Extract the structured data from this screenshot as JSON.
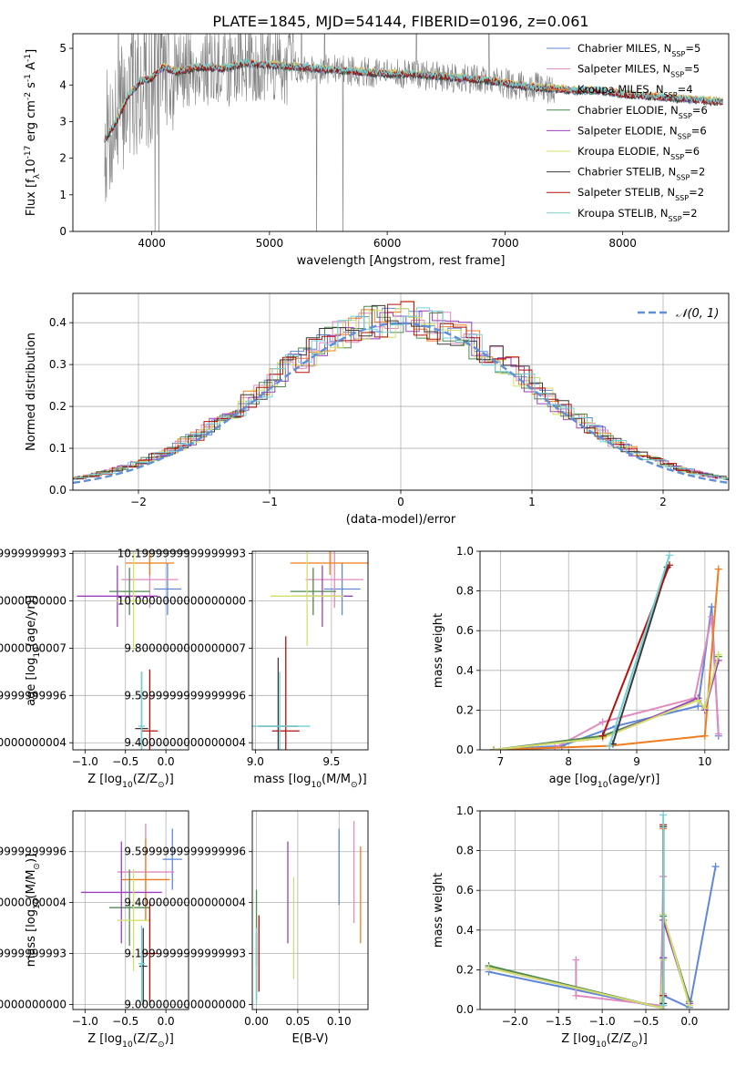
{
  "figure_title": "PLATE=1845, MJD=54144, FIBERID=0196, z=0.061",
  "series_names": [
    "Chabrier MILES, N$_{SSP}$=5",
    "Salpeter MILES, N$_{SSP}$=5",
    "Kroupa MILES, N$_{SSP}$=4",
    "Chabrier ELODIE, N$_{SSP}$=6",
    "Salpeter ELODIE, N$_{SSP}$=6",
    "Kroupa ELODIE, N$_{SSP}$=6",
    "Chabrier STELIB, N$_{SSP}$=2",
    "Salpeter STELIB, N$_{SSP}$=2",
    "Kroupa STELIB, N$_{SSP}$=2"
  ],
  "colors": {
    "series": [
      "#5f87d9",
      "#e08ac0",
      "#ef7d1f",
      "#4f8a4f",
      "#9a3fc0",
      "#d2e06a",
      "#3a3a3a",
      "#b5100a",
      "#72d2d8"
    ],
    "data_spectrum": "#808080",
    "normal_curve": "#5f8fd6",
    "grid": "#b0b0b0"
  },
  "chart_data": [
    {
      "id": "spectrum",
      "type": "line",
      "xlabel": "wavelength [Angstrom, rest frame]",
      "ylabel": "Flux [f$_\\lambda$10$^{-17}$ erg cm$^{-2}$ s$^{-1}$ A$^{-1}$]",
      "xlim": [
        3330,
        8900
      ],
      "ylim": [
        0,
        5.4
      ],
      "xticks": [
        4000,
        5000,
        6000,
        7000,
        8000
      ],
      "yticks": [
        0,
        1,
        2,
        3,
        4,
        5
      ],
      "grid": false,
      "legend": "right",
      "model_continuum": {
        "x": [
          3600,
          3700,
          3800,
          3900,
          4000,
          4100,
          4200,
          4400,
          4600,
          4800,
          5000,
          5200,
          5400,
          5600,
          5800,
          6000,
          6200,
          6400,
          6600,
          6800,
          7000,
          7200,
          7400,
          7600,
          7800,
          8000,
          8200,
          8400,
          8600,
          8800
        ],
        "y": [
          2.5,
          3.0,
          3.7,
          4.1,
          4.2,
          4.5,
          4.35,
          4.5,
          4.45,
          4.6,
          4.55,
          4.5,
          4.45,
          4.4,
          4.35,
          4.3,
          4.3,
          4.25,
          4.2,
          4.15,
          4.05,
          3.95,
          3.9,
          3.85,
          3.85,
          3.75,
          3.7,
          3.65,
          3.6,
          3.55
        ]
      },
      "data_noise_amplitude": 1.2
    },
    {
      "id": "residual_hist",
      "type": "line",
      "xlabel": "(data-model)/error",
      "ylabel": "Normed distribution",
      "xlim": [
        -2.5,
        2.5
      ],
      "ylim": [
        0,
        0.47
      ],
      "xticks": [
        -2,
        -1,
        0,
        1,
        2
      ],
      "yticks": [
        0.0,
        0.1,
        0.2,
        0.3,
        0.4
      ],
      "grid": true,
      "legend": "top-right",
      "legend_entry": "$\\mathcal{N}(0, 1)$"
    },
    {
      "id": "age_vs_Z",
      "type": "scatter",
      "xlabel": "Z [log$_{10}$(Z/Z$_\\odot$)]",
      "ylabel": "age  [log$_{10}$(age/yr)]",
      "xlim": [
        -1.15,
        0.28
      ],
      "ylim": [
        9.37,
        10.21
      ],
      "xticks": [
        -1.0,
        -0.5,
        0.0
      ],
      "yticks": [
        9.4,
        9.6,
        9.8,
        10.0,
        10.2
      ],
      "grid": true,
      "points": [
        {
          "s": 0,
          "x": 0.02,
          "y": 10.05,
          "xerr": 0.17,
          "yerr": 0.11
        },
        {
          "s": 1,
          "x": -0.2,
          "y": 10.09,
          "xerr": 0.35,
          "yerr": 0.12
        },
        {
          "s": 2,
          "x": -0.2,
          "y": 10.16,
          "xerr": 0.3,
          "yerr": 0.05
        },
        {
          "s": 3,
          "x": -0.45,
          "y": 10.04,
          "xerr": 0.25,
          "yerr": 0.1
        },
        {
          "s": 4,
          "x": -0.6,
          "y": 10.02,
          "xerr": 0.5,
          "yerr": 0.13
        },
        {
          "s": 5,
          "x": -0.4,
          "y": 10.0,
          "xerr": 0.22,
          "yerr": 0.21
        },
        {
          "s": 6,
          "x": -0.3,
          "y": 9.46,
          "xerr": 0.08,
          "yerr": 0.24
        },
        {
          "s": 7,
          "x": -0.2,
          "y": 9.45,
          "xerr": 0.1,
          "yerr": 0.26
        },
        {
          "s": 8,
          "x": -0.3,
          "y": 9.47,
          "xerr": 0.04,
          "yerr": 0.23
        }
      ]
    },
    {
      "id": "age_vs_mass",
      "type": "scatter",
      "xlabel": "mass [log$_{10}$(M/M$_\\odot$)]",
      "ylabel": "",
      "xlim": [
        8.98,
        9.74
      ],
      "ylim": [
        9.37,
        10.21
      ],
      "xticks": [
        9.0,
        9.5
      ],
      "yticks": [
        9.4,
        9.6,
        9.8,
        10.0,
        10.2
      ],
      "grid": true,
      "points": [
        {
          "s": 0,
          "x": 9.57,
          "y": 10.05,
          "xerr": 0.12,
          "yerr": 0.11
        },
        {
          "s": 1,
          "x": 9.52,
          "y": 10.09,
          "xerr": 0.19,
          "yerr": 0.12
        },
        {
          "s": 2,
          "x": 9.49,
          "y": 10.16,
          "xerr": 0.26,
          "yerr": 0.05
        },
        {
          "s": 3,
          "x": 9.38,
          "y": 10.04,
          "xerr": 0.15,
          "yerr": 0.1
        },
        {
          "s": 4,
          "x": 9.44,
          "y": 10.02,
          "xerr": 0.2,
          "yerr": 0.13
        },
        {
          "s": 5,
          "x": 9.34,
          "y": 10.02,
          "xerr": 0.24,
          "yerr": 0.21
        },
        {
          "s": 6,
          "x": 9.15,
          "y": 9.47,
          "xerr": 0.13,
          "yerr": 0.29
        },
        {
          "s": 7,
          "x": 9.2,
          "y": 9.45,
          "xerr": 0.09,
          "yerr": 0.4
        },
        {
          "s": 8,
          "x": 9.16,
          "y": 9.47,
          "xerr": 0.2,
          "yerr": 0.23
        }
      ]
    },
    {
      "id": "weight_vs_age",
      "type": "line",
      "xlabel": "age  [log$_{10}$(age/yr)]",
      "ylabel": "mass weight",
      "xlim": [
        6.7,
        10.35
      ],
      "ylim": [
        0,
        1.0
      ],
      "xticks": [
        7,
        8,
        9,
        10
      ],
      "yticks": [
        0.0,
        0.2,
        0.4,
        0.6,
        0.8,
        1.0
      ],
      "grid": true,
      "series": [
        {
          "s": 0,
          "x": [
            6.9,
            7.9,
            8.7,
            9.9,
            10.1,
            10.2
          ],
          "y": [
            0.0,
            0.02,
            0.12,
            0.22,
            0.72,
            0.07
          ]
        },
        {
          "s": 1,
          "x": [
            6.9,
            7.8,
            8.5,
            9.85,
            10.1,
            10.2
          ],
          "y": [
            0.0,
            0.01,
            0.14,
            0.26,
            0.67,
            0.08
          ]
        },
        {
          "s": 2,
          "x": [
            6.9,
            8.6,
            10.0,
            10.2
          ],
          "y": [
            0.0,
            0.02,
            0.07,
            0.91
          ]
        },
        {
          "s": 3,
          "x": [
            6.9,
            8.5,
            9.9,
            10.0,
            10.2
          ],
          "y": [
            0.0,
            0.07,
            0.25,
            0.21,
            0.47
          ]
        },
        {
          "s": 4,
          "x": [
            6.9,
            8.5,
            9.9,
            10.0,
            10.2
          ],
          "y": [
            0.0,
            0.06,
            0.26,
            0.2,
            0.45
          ]
        },
        {
          "s": 5,
          "x": [
            6.9,
            8.5,
            9.9,
            10.0,
            10.2
          ],
          "y": [
            0.0,
            0.06,
            0.25,
            0.21,
            0.48
          ]
        },
        {
          "s": 6,
          "x": [
            8.65,
            9.45
          ],
          "y": [
            0.03,
            0.92
          ]
        },
        {
          "s": 7,
          "x": [
            8.5,
            9.48
          ],
          "y": [
            0.07,
            0.93
          ]
        },
        {
          "s": 8,
          "x": [
            8.6,
            9.48
          ],
          "y": [
            0.02,
            0.98
          ]
        }
      ]
    },
    {
      "id": "mass_vs_Z",
      "type": "scatter",
      "xlabel": "Z [log$_{10}$(Z/Z$_\\odot$)]",
      "ylabel": "mass [log$_{10}$(M/M$_\\odot$)]",
      "xlim": [
        -1.15,
        0.28
      ],
      "ylim": [
        8.98,
        9.76
      ],
      "xticks": [
        -1.0,
        -0.5,
        0.0
      ],
      "yticks": [
        9.0,
        9.2,
        9.4,
        9.6
      ],
      "grid": true,
      "points": [
        {
          "s": 0,
          "x": 0.08,
          "y": 9.57,
          "xerr": 0.12,
          "yerr": 0.12
        },
        {
          "s": 1,
          "x": -0.25,
          "y": 9.52,
          "xerr": 0.35,
          "yerr": 0.19
        },
        {
          "s": 2,
          "x": -0.25,
          "y": 9.49,
          "xerr": 0.3,
          "yerr": 0.16
        },
        {
          "s": 3,
          "x": -0.45,
          "y": 9.38,
          "xerr": 0.25,
          "yerr": 0.15
        },
        {
          "s": 4,
          "x": -0.55,
          "y": 9.44,
          "xerr": 0.5,
          "yerr": 0.2
        },
        {
          "s": 5,
          "x": -0.4,
          "y": 9.33,
          "xerr": 0.2,
          "yerr": 0.2
        },
        {
          "s": 6,
          "x": -0.28,
          "y": 9.15,
          "xerr": 0.05,
          "yerr": 0.15
        },
        {
          "s": 7,
          "x": -0.2,
          "y": 9.2,
          "xerr": 0.1,
          "yerr": 0.2
        },
        {
          "s": 8,
          "x": -0.3,
          "y": 9.16,
          "xerr": 0.04,
          "yerr": 0.15
        }
      ]
    },
    {
      "id": "mass_vs_EBV",
      "type": "scatter",
      "xlabel": "E(B-V)",
      "ylabel": "",
      "xlim": [
        -0.005,
        0.135
      ],
      "ylim": [
        8.98,
        9.76
      ],
      "xticks": [
        0.0,
        0.05,
        0.1
      ],
      "yticks": [
        9.0,
        9.2,
        9.4,
        9.6
      ],
      "grid": true,
      "points": [
        {
          "s": 0,
          "x": 0.1,
          "y": 9.54,
          "yerr": 0.15
        },
        {
          "s": 1,
          "x": 0.118,
          "y": 9.52,
          "yerr": 0.2
        },
        {
          "s": 2,
          "x": 0.126,
          "y": 9.43,
          "yerr": 0.19
        },
        {
          "s": 3,
          "x": 0.0,
          "y": 9.3,
          "yerr": 0.15
        },
        {
          "s": 4,
          "x": 0.038,
          "y": 9.44,
          "yerr": 0.2
        },
        {
          "s": 5,
          "x": 0.045,
          "y": 9.3,
          "yerr": 0.2
        },
        {
          "s": 6,
          "x": 0.0,
          "y": 9.15,
          "yerr": 0.13
        },
        {
          "s": 7,
          "x": 0.003,
          "y": 9.2,
          "yerr": 0.15
        },
        {
          "s": 8,
          "x": 0.0,
          "y": 9.15,
          "yerr": 0.15
        }
      ]
    },
    {
      "id": "weight_vs_Z",
      "type": "line",
      "xlabel": "Z [log$_{10}$(Z/Z$_\\odot$)]",
      "ylabel": "mass weight",
      "xlim": [
        -2.4,
        0.45
      ],
      "ylim": [
        0,
        1.0
      ],
      "xticks": [
        -2.0,
        -1.5,
        -1.0,
        -0.5,
        0.0
      ],
      "yticks": [
        0.0,
        0.2,
        0.4,
        0.6,
        0.8,
        1.0
      ],
      "grid": true,
      "series": [
        {
          "s": 0,
          "x": [
            -2.3,
            -0.33,
            -0.3,
            0.0,
            0.3
          ],
          "y": [
            0.19,
            0.01,
            0.07,
            0.01,
            0.72
          ]
        },
        {
          "s": 1,
          "x": [
            -1.3,
            -1.3,
            -0.33,
            -0.3,
            -0.3,
            -0.3
          ],
          "y": [
            0.25,
            0.07,
            0.02,
            0.67,
            0.08,
            0.0
          ]
        },
        {
          "s": 2,
          "x": [
            -0.3,
            -0.3,
            -0.3,
            -0.3
          ],
          "y": [
            0.91,
            0.07,
            0.02,
            0.0
          ]
        },
        {
          "s": 3,
          "x": [
            -2.3,
            -0.33,
            -0.3,
            -0.3,
            0.0
          ],
          "y": [
            0.22,
            0.01,
            0.26,
            0.47,
            0.04
          ]
        },
        {
          "s": 4,
          "x": [
            -2.3,
            -0.33,
            -0.3,
            -0.3,
            0.0
          ],
          "y": [
            0.21,
            0.01,
            0.26,
            0.45,
            0.03
          ]
        },
        {
          "s": 5,
          "x": [
            -2.3,
            -0.33,
            -0.3,
            -0.3,
            0.0
          ],
          "y": [
            0.21,
            0.01,
            0.25,
            0.48,
            0.02
          ]
        },
        {
          "s": 6,
          "x": [
            -0.3,
            -0.3
          ],
          "y": [
            0.92,
            0.03
          ]
        },
        {
          "s": 7,
          "x": [
            -0.3,
            -0.3
          ],
          "y": [
            0.93,
            0.07
          ]
        },
        {
          "s": 8,
          "x": [
            -0.3,
            -0.3
          ],
          "y": [
            0.98,
            0.02
          ]
        }
      ]
    }
  ]
}
